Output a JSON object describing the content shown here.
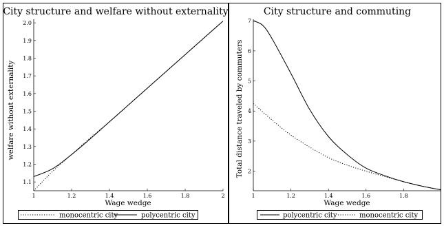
{
  "chart_data": [
    {
      "type": "line",
      "title": "City structure and welfare without externality",
      "xlabel": "Wage wedge",
      "ylabel": "welfare without externality",
      "xlim": [
        1,
        2
      ],
      "ylim": [
        1.05,
        2.02
      ],
      "xticks": [
        1,
        1.2,
        1.4,
        1.6,
        1.8,
        2
      ],
      "xtick_labels": [
        "1",
        "1.2",
        "1.4",
        "1.6",
        "1.8",
        "2"
      ],
      "yticks": [
        1.1,
        1.2,
        1.3,
        1.4,
        1.5,
        1.6,
        1.7,
        1.8,
        1.9,
        2.0
      ],
      "ytick_labels": [
        "1.1",
        "1.2",
        "1.3",
        "1.4",
        "1.5",
        "1.6",
        "1.7",
        "1.8",
        "1.9",
        "2.0"
      ],
      "grid": false,
      "legend_position": "bottom",
      "series": [
        {
          "name": "monocentric city",
          "style": "dotted",
          "x": [
            1.0,
            1.1,
            1.2,
            1.3,
            1.4,
            1.5,
            1.6,
            1.7,
            1.8,
            1.9,
            2.0
          ],
          "y": [
            1.05,
            1.16,
            1.255,
            1.35,
            1.44,
            1.535,
            1.63,
            1.725,
            1.82,
            1.915,
            2.01
          ]
        },
        {
          "name": "polycentric city",
          "style": "solid",
          "x": [
            1.0,
            1.1,
            1.2,
            1.3,
            1.4,
            1.5,
            1.6,
            1.7,
            1.8,
            1.9,
            2.0
          ],
          "y": [
            1.13,
            1.175,
            1.255,
            1.345,
            1.44,
            1.535,
            1.63,
            1.725,
            1.82,
            1.915,
            2.01
          ]
        }
      ]
    },
    {
      "type": "line",
      "title": "City structure and commuting",
      "xlabel": "Wage wedge",
      "ylabel": "Total distance traveled by commuters",
      "xlim": [
        1,
        2
      ],
      "ylim": [
        1.35,
        7.05
      ],
      "xticks": [
        1,
        1.2,
        1.4,
        1.6,
        1.8
      ],
      "xtick_labels": [
        "1",
        "1.2",
        "1.4",
        "1.6",
        "1.8"
      ],
      "yticks": [
        2,
        3,
        4,
        5,
        6,
        7
      ],
      "ytick_labels": [
        "2",
        "3",
        "4",
        "5",
        "6",
        "7"
      ],
      "grid": false,
      "legend_position": "bottom",
      "series": [
        {
          "name": "polycentric city",
          "style": "solid",
          "x": [
            1.0,
            1.05,
            1.1,
            1.2,
            1.3,
            1.4,
            1.5,
            1.6,
            1.7,
            1.8,
            1.9,
            2.0
          ],
          "y": [
            7.0,
            6.85,
            6.4,
            5.25,
            4.05,
            3.15,
            2.55,
            2.1,
            1.85,
            1.65,
            1.5,
            1.38
          ]
        },
        {
          "name": "monocentric city",
          "style": "dotted",
          "x": [
            1.0,
            1.1,
            1.2,
            1.3,
            1.4,
            1.5,
            1.6,
            1.7,
            1.8,
            1.9,
            2.0
          ],
          "y": [
            4.25,
            3.7,
            3.2,
            2.8,
            2.45,
            2.2,
            2.0,
            1.82,
            1.65,
            1.5,
            1.38
          ]
        }
      ]
    }
  ]
}
